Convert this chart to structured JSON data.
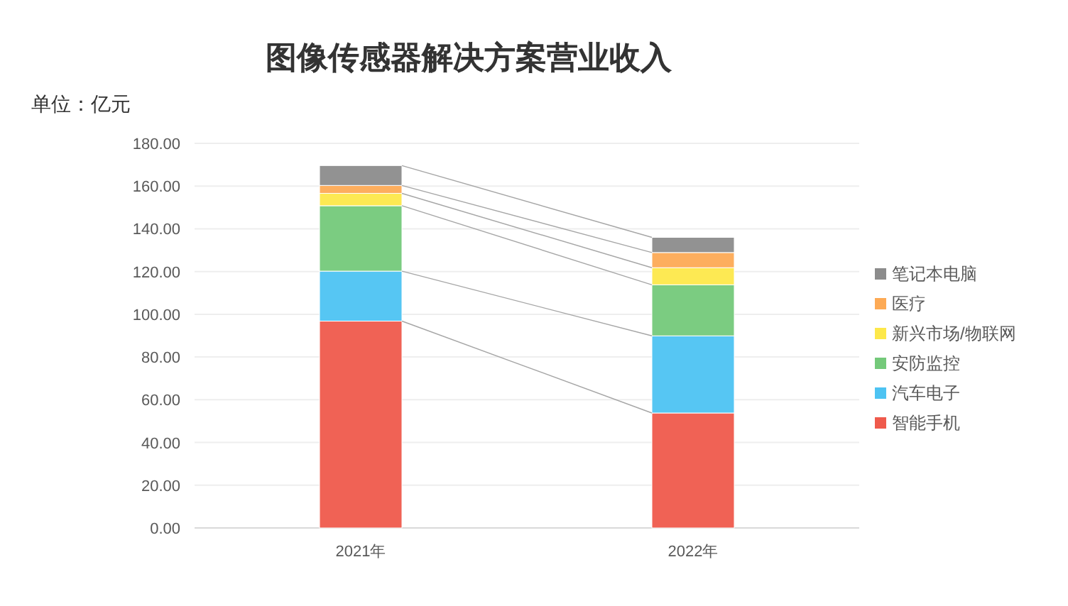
{
  "chart_data": {
    "type": "bar",
    "title": "图像传感器解决方案营业收入",
    "subtitle": "单位：亿元",
    "categories": [
      "2021年",
      "2022年"
    ],
    "stacked": true,
    "legend": "right",
    "grid": "y",
    "ylim": [
      0,
      180
    ],
    "yticks": [
      {
        "value": 0,
        "label": "0.00"
      },
      {
        "value": 20,
        "label": "20.00"
      },
      {
        "value": 40,
        "label": "40.00"
      },
      {
        "value": 60,
        "label": "60.00"
      },
      {
        "value": 80,
        "label": "80.00"
      },
      {
        "value": 100,
        "label": "100.00"
      },
      {
        "value": 120,
        "label": "120.00"
      },
      {
        "value": 140,
        "label": "140.00"
      },
      {
        "value": 160,
        "label": "160.00"
      },
      {
        "value": 180,
        "label": "180.00"
      }
    ],
    "series": [
      {
        "name": "智能手机",
        "color": "#ef5a4c",
        "values": [
          96.8,
          53.8
        ]
      },
      {
        "name": "汽车电子",
        "color": "#4dc3f2",
        "values": [
          23.4,
          36.1
        ]
      },
      {
        "name": "安防监控",
        "color": "#74c97a",
        "values": [
          30.6,
          23.9
        ]
      },
      {
        "name": "新兴市场/物联网",
        "color": "#fde84a",
        "values": [
          5.8,
          8.0
        ]
      },
      {
        "name": "医疗",
        "color": "#fdaa55",
        "values": [
          3.7,
          7.1
        ]
      },
      {
        "name": "笔记本电脑",
        "color": "#8c8c8c",
        "values": [
          9.3,
          7.1
        ]
      }
    ]
  }
}
